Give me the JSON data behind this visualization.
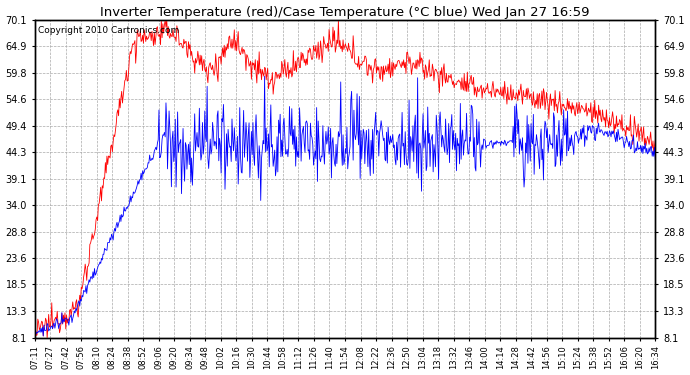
{
  "title": "Inverter Temperature (red)/Case Temperature (°C blue) Wed Jan 27 16:59",
  "copyright": "Copyright 2010 Cartronics.com",
  "yticks": [
    8.1,
    13.3,
    18.5,
    23.6,
    28.8,
    34.0,
    39.1,
    44.3,
    49.4,
    54.6,
    59.8,
    64.9,
    70.1
  ],
  "ymin": 8.1,
  "ymax": 70.1,
  "xtick_labels": [
    "07:11",
    "07:27",
    "07:42",
    "07:56",
    "08:10",
    "08:24",
    "08:38",
    "08:52",
    "09:06",
    "09:20",
    "09:34",
    "09:48",
    "10:02",
    "10:16",
    "10:30",
    "10:44",
    "10:58",
    "11:12",
    "11:26",
    "11:40",
    "11:54",
    "12:08",
    "12:22",
    "12:36",
    "12:50",
    "13:04",
    "13:18",
    "13:32",
    "13:46",
    "14:00",
    "14:14",
    "14:28",
    "14:42",
    "14:56",
    "15:10",
    "15:24",
    "15:38",
    "15:52",
    "16:06",
    "16:20",
    "16:34"
  ],
  "bg_color": "#ffffff",
  "plot_bg_color": "#ffffff",
  "grid_color": "#aaaaaa",
  "red_color": "#ff0000",
  "blue_color": "#0000ff",
  "figsize": [
    6.9,
    3.75
  ],
  "dpi": 100
}
